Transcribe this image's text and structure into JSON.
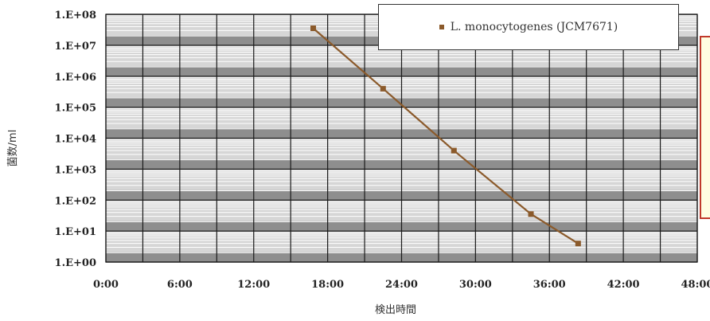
{
  "chart_data": {
    "type": "line",
    "title": "",
    "xlabel": "検出時間",
    "ylabel": "菌数/ml",
    "x_ticks": [
      "0:00",
      "6:00",
      "12:00",
      "18:00",
      "24:00",
      "30:00",
      "36:00",
      "42:00",
      "48:00"
    ],
    "y_ticks": [
      "1.E+00",
      "1.E+01",
      "1.E+02",
      "1.E+03",
      "1.E+04",
      "1.E+05",
      "1.E+06",
      "1.E+07",
      "1.E+08"
    ],
    "xlim_hours": [
      0,
      48
    ],
    "ylim_log10": [
      0,
      8
    ],
    "y_scale": "log",
    "grid": true,
    "legend_position": "top-right",
    "series": [
      {
        "name": "L. monocytogenes (JCM7671)",
        "color": "#8b5a2b",
        "x_hours": [
          16.83,
          22.5,
          28.25,
          34.5,
          38.33
        ],
        "y_log10": [
          7.55,
          5.6,
          3.6,
          1.55,
          0.6
        ]
      }
    ]
  },
  "colors": {
    "plot_bg": "#d6d6d6",
    "band_dark": "#8e8e8e",
    "gridline": "#ffffff",
    "series_line": "#8b5a2b",
    "note_border": "#c0392b",
    "note_fill": "#fffde0"
  }
}
